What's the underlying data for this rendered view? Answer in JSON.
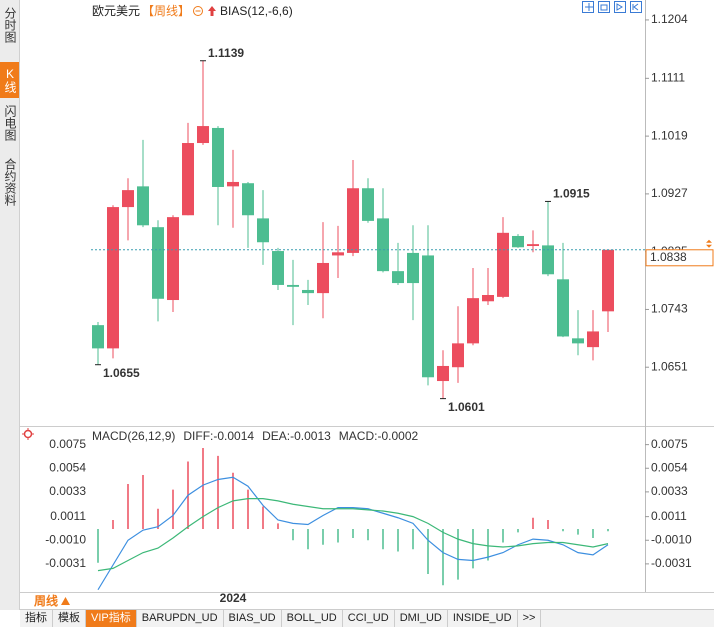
{
  "ui": {
    "side_tabs": [
      "分时图",
      "K线图",
      "闪电图",
      "合约资料"
    ],
    "active_side_tab": 1,
    "period_button": "周线",
    "bottom_tabs": [
      "指标",
      "模板",
      "VIP指标",
      "BARUPDN_UD",
      "BIAS_UD",
      "BOLL_UD",
      "CCI_UD",
      "DMI_UD",
      "INSIDE_UD",
      ">>"
    ],
    "active_bottom_tab": 2
  },
  "chart_data": [
    {
      "type": "candlestick",
      "title": "欧元美元",
      "period": "【周线】",
      "indicator": "BIAS(12,-6,6)",
      "up_color": "#ec4d5e",
      "down_color": "#4dbd91",
      "categories": [
        null,
        null,
        null,
        null,
        null,
        null,
        null,
        null,
        null,
        "2024",
        null,
        null,
        null,
        null,
        null,
        null,
        null,
        null,
        null,
        null,
        null,
        null,
        null,
        null,
        null,
        null,
        null,
        null,
        null,
        null,
        null,
        null,
        null,
        null,
        null
      ],
      "open": [
        1.0718,
        1.0681,
        1.0906,
        1.0939,
        1.0874,
        1.0758,
        1.0893,
        1.1008,
        1.1032,
        1.0939,
        1.0944,
        1.0888,
        1.0836,
        1.0782,
        1.0774,
        1.0769,
        1.0829,
        1.0833,
        1.0936,
        1.0888,
        1.0804,
        1.0833,
        1.0829,
        1.0629,
        1.0651,
        1.0689,
        1.0756,
        1.0763,
        1.086,
        1.0844,
        1.0845,
        1.0791,
        1.0697,
        1.0683,
        1.074
      ],
      "high": [
        1.0723,
        1.0909,
        1.0952,
        1.1013,
        1.0885,
        1.0893,
        1.104,
        1.1139,
        1.1035,
        1.0997,
        1.0946,
        1.0933,
        1.0841,
        1.0822,
        1.079,
        1.0882,
        1.0876,
        1.0981,
        1.0952,
        1.0936,
        1.0849,
        1.0877,
        1.0877,
        1.0678,
        1.0748,
        1.0809,
        1.0809,
        1.089,
        1.0863,
        1.0869,
        1.0915,
        1.0849,
        1.0742,
        1.0742,
        1.0836
      ],
      "low": [
        1.0655,
        1.0665,
        1.0853,
        1.0874,
        1.0724,
        1.0739,
        1.0893,
        1.1005,
        1.0877,
        1.0873,
        1.0841,
        1.0814,
        1.0774,
        1.0718,
        1.075,
        1.0729,
        1.0793,
        1.0828,
        1.0881,
        1.0802,
        1.0782,
        1.0726,
        1.0622,
        1.0601,
        1.0626,
        1.0686,
        1.075,
        1.0761,
        1.0841,
        1.0834,
        1.0796,
        1.0699,
        1.067,
        1.0662,
        1.0707
      ],
      "close": [
        1.0681,
        1.0906,
        1.0933,
        1.0877,
        1.076,
        1.089,
        1.1008,
        1.1035,
        1.0938,
        1.0946,
        1.0893,
        1.085,
        1.0782,
        1.0779,
        1.0769,
        1.0817,
        1.0834,
        1.0936,
        1.0884,
        1.0804,
        1.0785,
        1.0785,
        1.0635,
        1.0653,
        1.0689,
        1.0761,
        1.0766,
        1.0865,
        1.0842,
        1.0847,
        1.0799,
        1.07,
        1.0689,
        1.0708,
        1.0838
      ],
      "annotations": [
        "1.1139",
        "1.0655",
        "1.0601",
        "1.0915"
      ],
      "last_price": 1.0838,
      "last_price_color": "#f07b1a",
      "ylim": [
        1.0559,
        1.1223
      ],
      "yticks": [
        1.1204,
        1.1111,
        1.1019,
        1.0927,
        1.0835,
        1.0743,
        1.0651
      ]
    },
    {
      "type": "macd",
      "title": "MACD(26,12,9)",
      "up_color": "#ec4d5e",
      "down_color": "#4dbd91",
      "series": [
        {
          "name": "DIFF:-0.0014",
          "color": "#3d8fe0",
          "values": [
            -0.0054,
            -0.0032,
            -0.001,
            -0.0001,
            0.0002,
            0.0012,
            0.003,
            0.0039,
            0.0044,
            0.0046,
            0.0038,
            0.0021,
            0.0008,
            0.0005,
            0.0004,
            0.0012,
            0.0019,
            0.0019,
            0.0018,
            0.0014,
            0.001,
            0.0005,
            -0.001,
            -0.0021,
            -0.0027,
            -0.0028,
            -0.0025,
            -0.0021,
            -0.0014,
            -0.0009,
            -0.001,
            -0.0014,
            -0.0021,
            -0.0023,
            -0.0014
          ]
        },
        {
          "name": "DEA:-0.0013",
          "color": "#3cb878",
          "values": [
            -0.0037,
            -0.0035,
            -0.0028,
            -0.0021,
            -0.0017,
            -0.0008,
            0.0002,
            0.0011,
            0.0019,
            0.0025,
            0.0027,
            0.0027,
            0.0025,
            0.0022,
            0.002,
            0.0018,
            0.0018,
            0.0018,
            0.0017,
            0.0016,
            0.0014,
            0.0011,
            0.0005,
            -0.0003,
            -0.0009,
            -0.0013,
            -0.0015,
            -0.0016,
            -0.0015,
            -0.0013,
            -0.0012,
            -0.0012,
            -0.0014,
            -0.0016,
            -0.0013
          ]
        },
        {
          "name": "MACD:-0.0002",
          "color": "#3d8fe0",
          "values": [
            -0.003,
            0.0008,
            0.004,
            0.0048,
            0.0018,
            0.0035,
            0.006,
            0.0072,
            0.0065,
            0.005,
            0.0035,
            0.002,
            0.0005,
            -0.001,
            -0.0018,
            -0.0014,
            -0.0012,
            -0.0008,
            -0.001,
            -0.0018,
            -0.002,
            -0.0018,
            -0.004,
            -0.005,
            -0.0045,
            -0.0035,
            -0.0028,
            -0.0012,
            -0.0003,
            0.001,
            0.0008,
            -0.0002,
            -0.0005,
            -0.0008,
            -0.0002
          ]
        }
      ],
      "ylim": [
        -0.0056,
        0.0088
      ],
      "yticks": [
        0.0075,
        0.0054,
        0.0033,
        0.0011,
        {
          "value": -0.001,
          "label": "-0.0010"
        },
        -0.0031
      ]
    }
  ]
}
